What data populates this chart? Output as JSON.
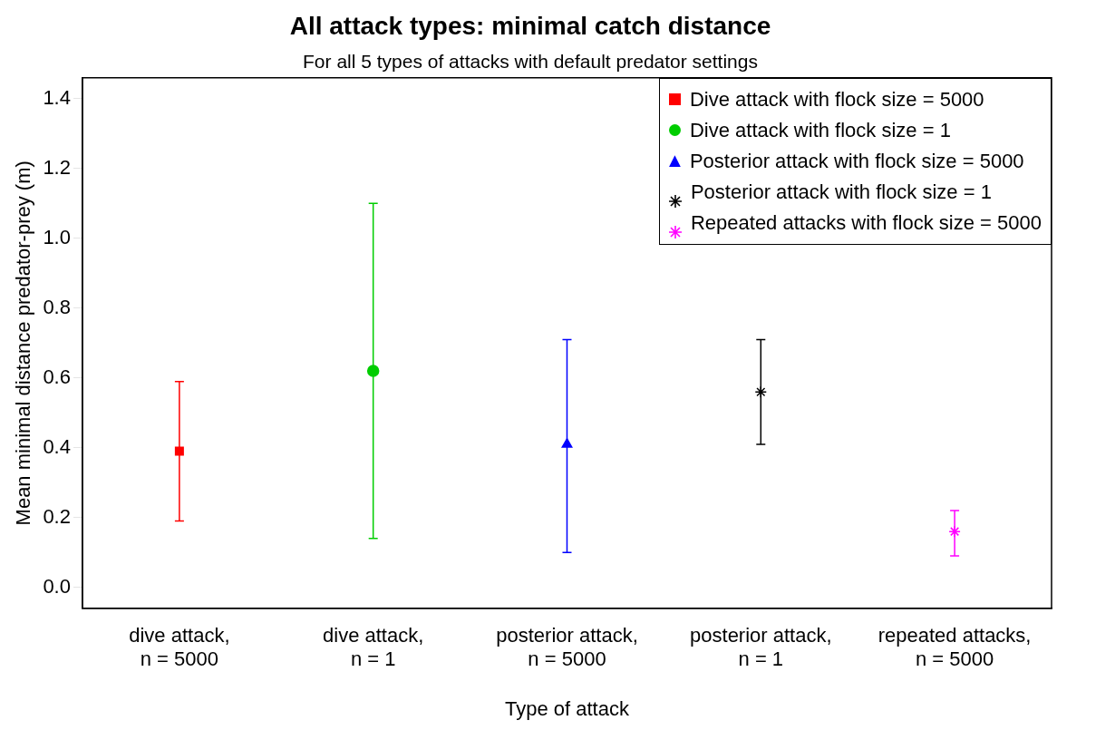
{
  "chart_data": {
    "type": "scatter",
    "title": "All attack types: minimal catch distance",
    "subtitle": "For all 5 types of attacks with default predator settings",
    "xlabel": "Type of attack",
    "ylabel": "Mean minimal distance predator-prey (m)",
    "categories": [
      "dive attack,\nn = 5000",
      "dive attack,\nn = 1",
      "posterior attack,\nn = 5000",
      "posterior attack,\nn = 1",
      "repeated attacks,\nn = 5000"
    ],
    "series": [
      {
        "name": "Dive attack with flock size = 5000",
        "color": "#ff0000",
        "marker": "square",
        "values": [
          0.39,
          null,
          null,
          null,
          null
        ],
        "errors": [
          [
            0.19,
            0.59
          ],
          null,
          null,
          null,
          null
        ]
      },
      {
        "name": "Dive attack with flock size = 1",
        "color": "#00cd00",
        "marker": "circle",
        "values": [
          null,
          0.62,
          null,
          null,
          null
        ],
        "errors": [
          null,
          [
            0.14,
            1.1
          ],
          null,
          null,
          null
        ]
      },
      {
        "name": "Posterior attack with flock size = 5000",
        "color": "#0000ff",
        "marker": "triangle",
        "values": [
          null,
          null,
          0.41,
          null,
          null
        ],
        "errors": [
          null,
          null,
          [
            0.1,
            0.71
          ],
          null,
          null
        ]
      },
      {
        "name": "Posterior attack with flock size = 1",
        "color": "#000000",
        "marker": "cross",
        "values": [
          null,
          null,
          null,
          0.56,
          null
        ],
        "errors": [
          null,
          null,
          null,
          [
            0.41,
            0.71
          ],
          null
        ]
      },
      {
        "name": "Repeated attacks with flock size = 5000",
        "color": "#ff00ff",
        "marker": "cross",
        "values": [
          null,
          null,
          null,
          null,
          0.16
        ],
        "errors": [
          null,
          null,
          null,
          null,
          [
            0.09,
            0.22
          ]
        ]
      }
    ],
    "ylim": [
      -0.06,
      1.46
    ],
    "yticks": [
      {
        "value": 0,
        "label": "0.0"
      },
      0.2,
      0.4,
      0.6,
      0.8,
      {
        "value": 1,
        "label": "1.0"
      },
      1.2,
      1.4
    ],
    "grid": false,
    "legend": "top right"
  }
}
